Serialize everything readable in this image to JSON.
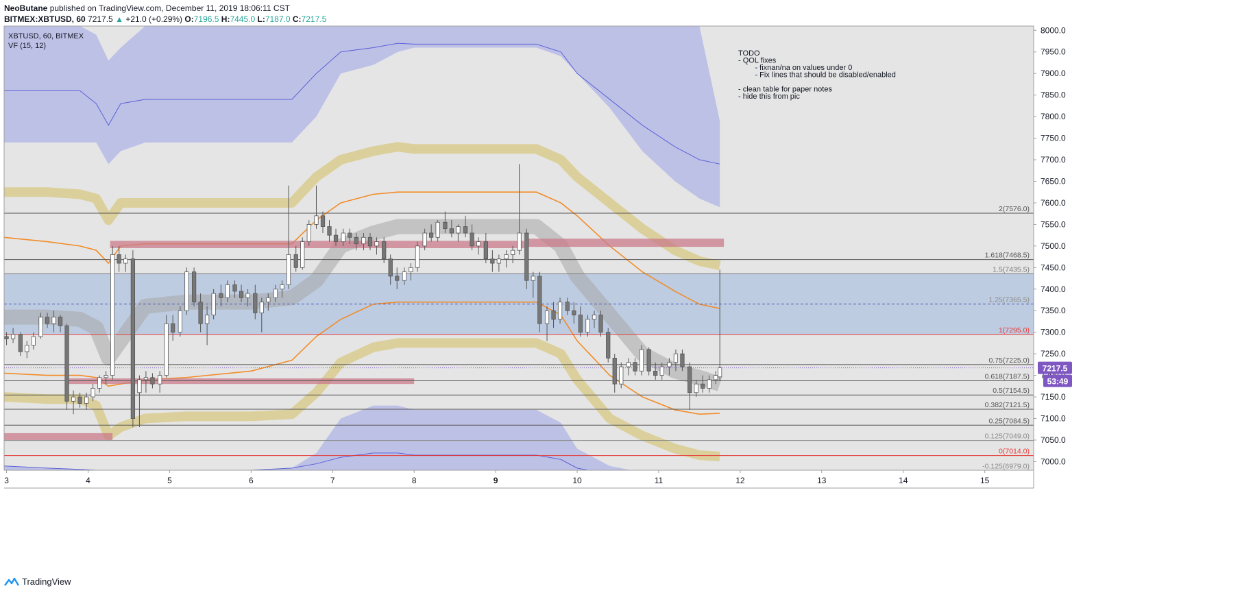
{
  "header": {
    "author": "NeoButane",
    "published": "published on TradingView.com, December 11, 2019 18:06:11 CST",
    "symbol_line": "BITMEX:XBTUSD, 60",
    "last": "7217.5",
    "change": "+21.0 (+0.29%)",
    "o_label": "O:",
    "o": "7196.5",
    "h_label": "H:",
    "h": "7445.0",
    "l_label": "L:",
    "l": "7187.0",
    "c_label": "C:",
    "c": "7217.5"
  },
  "legend": {
    "symbol": "XBTUSD, 60, BITMEX",
    "indicator": "VF  (15, 12)"
  },
  "notes": [
    "TODO",
    "- QOL fixes",
    "    - fixnan/na on values under 0",
    "    - Fix lines that should be disabled/enabled",
    "",
    "- clean table for paper notes",
    "- hide this from pic"
  ],
  "footer": {
    "brand": "TradingView"
  },
  "price_badge": {
    "price": "7217.5",
    "countdown": "53:49"
  },
  "colors": {
    "bg": "#e5e5e5",
    "blue_band": "#8e94e6",
    "blue_line": "#5a61d6",
    "tan_band": "#d9cc8f",
    "gray_band": "#c0c0c0",
    "orange": "#f28c28",
    "red_zone": "#c97b8a",
    "fib_zone": "#9fb8de",
    "candle_up": "#ffffff",
    "candle_down": "#777777",
    "badge": "#7e57c2"
  },
  "chart_data": {
    "type": "candlestick",
    "x_ticks": [
      "3",
      "4",
      "5",
      "6",
      "7",
      "8",
      "9",
      "10",
      "11",
      "12",
      "13",
      "14",
      "15"
    ],
    "y_ticks": [
      7000,
      7050,
      7100,
      7150,
      7200,
      7250,
      7300,
      7350,
      7400,
      7450,
      7500,
      7550,
      7600,
      7650,
      7700,
      7750,
      7800,
      7850,
      7900,
      7950,
      8000
    ],
    "ylim": [
      6980,
      8010
    ],
    "xlim": [
      2.97,
      15.6
    ],
    "fib_levels": [
      {
        "label": "2(7576.0)",
        "value": 7576.0,
        "color": "#555555"
      },
      {
        "label": "1.618(7468.5)",
        "value": 7468.5,
        "color": "#555555"
      },
      {
        "label": "1.5(7435.5)",
        "value": 7435.5,
        "color": "#7a7a7a"
      },
      {
        "label": "1.25(7365.5)",
        "value": 7365.5,
        "color": "#8a8a8a"
      },
      {
        "label": "1(7295.0)",
        "value": 7295.0,
        "color": "#e53935"
      },
      {
        "label": "0.75(7225.0)",
        "value": 7225.0,
        "color": "#555555"
      },
      {
        "label": "0.618(7187.5)",
        "value": 7187.5,
        "color": "#555555"
      },
      {
        "label": "0.5(7154.5)",
        "value": 7154.5,
        "color": "#555555"
      },
      {
        "label": "0.382(7121.5)",
        "value": 7121.5,
        "color": "#555555"
      },
      {
        "label": "0.25(7084.5)",
        "value": 7084.5,
        "color": "#555555"
      },
      {
        "label": "0.125(7049.0)",
        "value": 7049.0,
        "color": "#8a8a8a"
      },
      {
        "label": "0(7014.0)",
        "value": 7014.0,
        "color": "#e53935"
      },
      {
        "label": "-0.125(6979.0)",
        "value": 6979.0,
        "color": "#8a8a8a"
      }
    ],
    "fib_zone": [
      7295.0,
      7435.5
    ],
    "red_zones": [
      {
        "x0": 4.27,
        "x1": 9.35,
        "y0": 7495,
        "y1": 7512
      },
      {
        "x0": 9.38,
        "x1": 11.8,
        "y0": 7498,
        "y1": 7517
      },
      {
        "x0": 3.75,
        "x1": 8.0,
        "y0": 7180,
        "y1": 7193
      },
      {
        "x0": 2.97,
        "x1": 4.3,
        "y0": 7050,
        "y1": 7066
      }
    ],
    "bands": {
      "x": [
        2.97,
        3.5,
        3.9,
        4.1,
        4.25,
        4.4,
        4.7,
        5.2,
        6.0,
        6.5,
        6.8,
        7.1,
        7.5,
        7.8,
        8.0,
        8.5,
        9.0,
        9.5,
        9.8,
        10.0,
        10.4,
        10.8,
        11.2,
        11.5,
        11.75
      ],
      "blue_upper_top": [
        8010,
        8010,
        8010,
        7990,
        7930,
        7960,
        8010,
        8010,
        8010,
        8010,
        8010,
        8010,
        8010,
        8010,
        8010,
        8010,
        8010,
        8010,
        8010,
        8010,
        8010,
        8010,
        8010,
        8010,
        7790
      ],
      "blue_upper_bottom": [
        7740,
        7740,
        7740,
        7740,
        7690,
        7720,
        7740,
        7740,
        7740,
        7740,
        7800,
        7900,
        7920,
        7950,
        7960,
        7960,
        7960,
        7960,
        7940,
        7900,
        7820,
        7720,
        7650,
        7610,
        7590
      ],
      "blue_upper_line": [
        7860,
        7860,
        7860,
        7830,
        7780,
        7830,
        7840,
        7840,
        7840,
        7840,
        7900,
        7950,
        7960,
        7970,
        7968,
        7968,
        7968,
        7968,
        7950,
        7900,
        7840,
        7780,
        7730,
        7700,
        7690
      ],
      "tan_upper": [
        7625,
        7625,
        7620,
        7610,
        7560,
        7600,
        7600,
        7600,
        7600,
        7600,
        7660,
        7700,
        7720,
        7730,
        7725,
        7725,
        7725,
        7725,
        7700,
        7660,
        7600,
        7540,
        7490,
        7465,
        7455
      ],
      "orange_upper": [
        7520,
        7510,
        7500,
        7490,
        7460,
        7500,
        7505,
        7505,
        7505,
        7505,
        7560,
        7600,
        7620,
        7625,
        7625,
        7625,
        7625,
        7625,
        7600,
        7570,
        7500,
        7440,
        7395,
        7365,
        7355
      ],
      "gray_band": [
        7335,
        7335,
        7330,
        7310,
        7240,
        7280,
        7360,
        7370,
        7370,
        7380,
        7420,
        7500,
        7530,
        7545,
        7545,
        7545,
        7545,
        7545,
        7500,
        7430,
        7340,
        7250,
        7210,
        7195,
        7180
      ],
      "orange_lower": [
        7205,
        7200,
        7200,
        7195,
        7175,
        7180,
        7190,
        7195,
        7210,
        7235,
        7290,
        7330,
        7365,
        7370,
        7370,
        7370,
        7370,
        7370,
        7340,
        7280,
        7200,
        7150,
        7120,
        7110,
        7112
      ],
      "tan_lower": [
        7150,
        7145,
        7145,
        7130,
        7060,
        7080,
        7100,
        7105,
        7105,
        7110,
        7160,
        7230,
        7265,
        7275,
        7275,
        7275,
        7275,
        7275,
        7250,
        7190,
        7100,
        7060,
        7030,
        7015,
        7012
      ],
      "blue_lower_top": [
        6990,
        6985,
        6982,
        6980,
        6975,
        6978,
        6980,
        6980,
        6980,
        6985,
        7020,
        7100,
        7130,
        7130,
        7120,
        7120,
        7120,
        7120,
        7090,
        7030,
        6990,
        6975,
        6970,
        6970,
        6970
      ],
      "blue_lower_line": [
        6990,
        6985,
        6982,
        6980,
        6975,
        6978,
        6980,
        6980,
        6980,
        6985,
        6995,
        7010,
        7020,
        7020,
        7015,
        7015,
        7015,
        7015,
        7005,
        6985,
        6970,
        6965,
        6962,
        6960,
        6960
      ]
    },
    "candles": [
      [
        3.0,
        7290,
        7300,
        7270,
        7285
      ],
      [
        3.08,
        7285,
        7310,
        7275,
        7295
      ],
      [
        3.17,
        7295,
        7300,
        7245,
        7255
      ],
      [
        3.25,
        7255,
        7280,
        7240,
        7270
      ],
      [
        3.33,
        7270,
        7300,
        7260,
        7290
      ],
      [
        3.42,
        7290,
        7345,
        7285,
        7335
      ],
      [
        3.5,
        7335,
        7345,
        7310,
        7320
      ],
      [
        3.58,
        7320,
        7350,
        7300,
        7335
      ],
      [
        3.66,
        7335,
        7340,
        7300,
        7315
      ],
      [
        3.74,
        7315,
        7320,
        7120,
        7140
      ],
      [
        3.82,
        7140,
        7165,
        7110,
        7150
      ],
      [
        3.9,
        7150,
        7160,
        7125,
        7135
      ],
      [
        3.98,
        7135,
        7160,
        7120,
        7150
      ],
      [
        4.06,
        7150,
        7180,
        7140,
        7170
      ],
      [
        4.14,
        7170,
        7200,
        7160,
        7195
      ],
      [
        4.22,
        7195,
        7210,
        7180,
        7200
      ],
      [
        4.3,
        7200,
        7500,
        7190,
        7480
      ],
      [
        4.38,
        7480,
        7500,
        7440,
        7460
      ],
      [
        4.46,
        7460,
        7480,
        7440,
        7470
      ],
      [
        4.55,
        7470,
        7490,
        7080,
        7100
      ],
      [
        4.63,
        7160,
        7200,
        7080,
        7190
      ],
      [
        4.71,
        7190,
        7210,
        7160,
        7195
      ],
      [
        4.79,
        7195,
        7205,
        7170,
        7180
      ],
      [
        4.88,
        7180,
        7210,
        7160,
        7200
      ],
      [
        4.96,
        7200,
        7340,
        7195,
        7320
      ],
      [
        5.04,
        7320,
        7340,
        7280,
        7300
      ],
      [
        5.13,
        7300,
        7360,
        7290,
        7350
      ],
      [
        5.21,
        7350,
        7450,
        7340,
        7440
      ],
      [
        5.3,
        7440,
        7450,
        7360,
        7370
      ],
      [
        5.38,
        7370,
        7390,
        7300,
        7320
      ],
      [
        5.46,
        7320,
        7360,
        7270,
        7340
      ],
      [
        5.54,
        7340,
        7400,
        7330,
        7390
      ],
      [
        5.63,
        7390,
        7410,
        7360,
        7380
      ],
      [
        5.71,
        7380,
        7420,
        7370,
        7410
      ],
      [
        5.8,
        7410,
        7420,
        7380,
        7395
      ],
      [
        5.88,
        7395,
        7410,
        7370,
        7380
      ],
      [
        5.96,
        7380,
        7400,
        7360,
        7390
      ],
      [
        6.05,
        7390,
        7410,
        7330,
        7345
      ],
      [
        6.13,
        7345,
        7380,
        7300,
        7370
      ],
      [
        6.21,
        7370,
        7390,
        7350,
        7380
      ],
      [
        6.3,
        7380,
        7410,
        7370,
        7400
      ],
      [
        6.38,
        7400,
        7420,
        7380,
        7410
      ],
      [
        6.46,
        7410,
        7640,
        7400,
        7480
      ],
      [
        6.55,
        7480,
        7500,
        7440,
        7450
      ],
      [
        6.63,
        7450,
        7520,
        7445,
        7510
      ],
      [
        6.71,
        7510,
        7560,
        7500,
        7550
      ],
      [
        6.8,
        7550,
        7640,
        7540,
        7570
      ],
      [
        6.88,
        7570,
        7580,
        7530,
        7545
      ],
      [
        6.96,
        7545,
        7560,
        7510,
        7525
      ],
      [
        7.04,
        7525,
        7540,
        7500,
        7510
      ],
      [
        7.13,
        7510,
        7540,
        7500,
        7530
      ],
      [
        7.21,
        7530,
        7540,
        7505,
        7520
      ],
      [
        7.29,
        7520,
        7530,
        7490,
        7505
      ],
      [
        7.38,
        7505,
        7530,
        7490,
        7520
      ],
      [
        7.46,
        7520,
        7530,
        7490,
        7500
      ],
      [
        7.54,
        7500,
        7520,
        7480,
        7510
      ],
      [
        7.63,
        7510,
        7520,
        7460,
        7470
      ],
      [
        7.71,
        7470,
        7480,
        7410,
        7430
      ],
      [
        7.79,
        7430,
        7450,
        7400,
        7420
      ],
      [
        7.88,
        7420,
        7450,
        7410,
        7440
      ],
      [
        7.96,
        7440,
        7460,
        7420,
        7450
      ],
      [
        8.04,
        7450,
        7510,
        7440,
        7500
      ],
      [
        8.13,
        7500,
        7540,
        7490,
        7530
      ],
      [
        8.21,
        7530,
        7550,
        7510,
        7520
      ],
      [
        8.29,
        7520,
        7560,
        7510,
        7555
      ],
      [
        8.38,
        7555,
        7580,
        7530,
        7540
      ],
      [
        8.46,
        7540,
        7560,
        7520,
        7530
      ],
      [
        8.54,
        7530,
        7550,
        7510,
        7545
      ],
      [
        8.63,
        7545,
        7570,
        7520,
        7530
      ],
      [
        8.71,
        7530,
        7550,
        7490,
        7500
      ],
      [
        8.79,
        7500,
        7520,
        7480,
        7510
      ],
      [
        8.88,
        7510,
        7530,
        7460,
        7470
      ],
      [
        8.96,
        7470,
        7490,
        7440,
        7460
      ],
      [
        9.04,
        7460,
        7480,
        7440,
        7470
      ],
      [
        9.13,
        7470,
        7490,
        7450,
        7480
      ],
      [
        9.21,
        7480,
        7500,
        7460,
        7490
      ],
      [
        9.29,
        7490,
        7690,
        7480,
        7530
      ],
      [
        9.38,
        7530,
        7540,
        7400,
        7420
      ],
      [
        9.46,
        7420,
        7440,
        7380,
        7430
      ],
      [
        9.54,
        7430,
        7440,
        7300,
        7320
      ],
      [
        9.63,
        7320,
        7360,
        7280,
        7350
      ],
      [
        9.71,
        7350,
        7370,
        7310,
        7330
      ],
      [
        9.79,
        7330,
        7380,
        7320,
        7370
      ],
      [
        9.88,
        7370,
        7380,
        7340,
        7350
      ],
      [
        9.96,
        7350,
        7370,
        7320,
        7340
      ],
      [
        10.04,
        7340,
        7360,
        7290,
        7300
      ],
      [
        10.13,
        7300,
        7340,
        7290,
        7330
      ],
      [
        10.21,
        7330,
        7350,
        7310,
        7340
      ],
      [
        10.29,
        7340,
        7350,
        7290,
        7300
      ],
      [
        10.38,
        7300,
        7310,
        7230,
        7240
      ],
      [
        10.46,
        7240,
        7250,
        7160,
        7180
      ],
      [
        10.54,
        7180,
        7230,
        7170,
        7220
      ],
      [
        10.63,
        7220,
        7240,
        7200,
        7230
      ],
      [
        10.71,
        7230,
        7240,
        7200,
        7210
      ],
      [
        10.79,
        7210,
        7270,
        7200,
        7260
      ],
      [
        10.88,
        7260,
        7265,
        7200,
        7210
      ],
      [
        10.96,
        7210,
        7230,
        7190,
        7200
      ],
      [
        11.04,
        7200,
        7230,
        7190,
        7220
      ],
      [
        11.13,
        7220,
        7240,
        7200,
        7230
      ],
      [
        11.21,
        7230,
        7260,
        7210,
        7250
      ],
      [
        11.29,
        7250,
        7260,
        7210,
        7220
      ],
      [
        11.38,
        7220,
        7230,
        7120,
        7160
      ],
      [
        11.46,
        7160,
        7190,
        7150,
        7180
      ],
      [
        11.54,
        7180,
        7200,
        7160,
        7170
      ],
      [
        11.62,
        7170,
        7200,
        7160,
        7190
      ],
      [
        11.7,
        7190,
        7210,
        7180,
        7200
      ],
      [
        11.75,
        7196.5,
        7445,
        7187,
        7217.5
      ]
    ]
  }
}
